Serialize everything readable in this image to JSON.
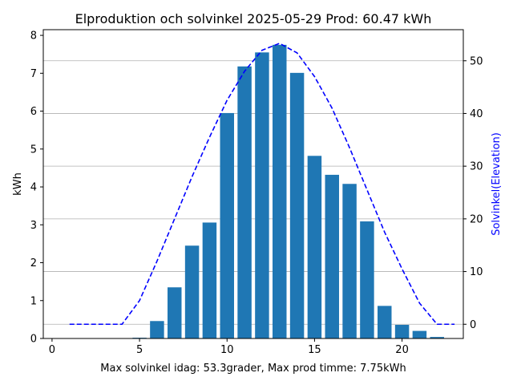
{
  "chart_data": {
    "type": "bar",
    "title": "Elproduktion och solvinkel 2025-05-29 Prod: 60.47 kWh",
    "xlabel": "Max solvinkel idag: 53.3grader, Max prod timme: 7.75kWh",
    "ylabel": "kWh",
    "ylabel_right": "Solvinkel(Elevation)",
    "xlim": [
      -0.5,
      23.5
    ],
    "ylim": [
      0,
      8.15
    ],
    "ylim_right": [
      -2.7,
      55.9
    ],
    "xticks": [
      0,
      5,
      10,
      15,
      20
    ],
    "yticks": [
      0,
      1,
      2,
      3,
      4,
      5,
      6,
      7,
      8
    ],
    "yticks_right": [
      0,
      10,
      20,
      30,
      40,
      50
    ],
    "grid": "horizontal lines at right-axis ticks",
    "bar_color": "#1f77b4",
    "line_color": "#0000ff",
    "series": [
      {
        "kind": "bar",
        "x": [
          5,
          6,
          7,
          8,
          9,
          10,
          11,
          12,
          13,
          14,
          15,
          16,
          17,
          18,
          19,
          20,
          21,
          22
        ],
        "values": [
          0.02,
          0.46,
          1.35,
          2.45,
          3.06,
          5.95,
          7.18,
          7.55,
          7.75,
          7.01,
          4.82,
          4.32,
          4.08,
          3.09,
          0.86,
          0.36,
          0.2,
          0.04
        ]
      },
      {
        "kind": "line",
        "axis": "right",
        "style": "dashed",
        "x": [
          1,
          2,
          3,
          4,
          5,
          6,
          7,
          8,
          9,
          10,
          11,
          12,
          13,
          14,
          15,
          16,
          17,
          18,
          19,
          20,
          21,
          22,
          23
        ],
        "values": [
          0,
          0,
          0,
          0,
          4.5,
          12,
          20,
          28,
          35.5,
          42.5,
          48,
          52,
          53.3,
          51.5,
          47,
          41,
          33.5,
          25.5,
          17.5,
          10.5,
          4,
          0,
          0
        ]
      }
    ]
  }
}
